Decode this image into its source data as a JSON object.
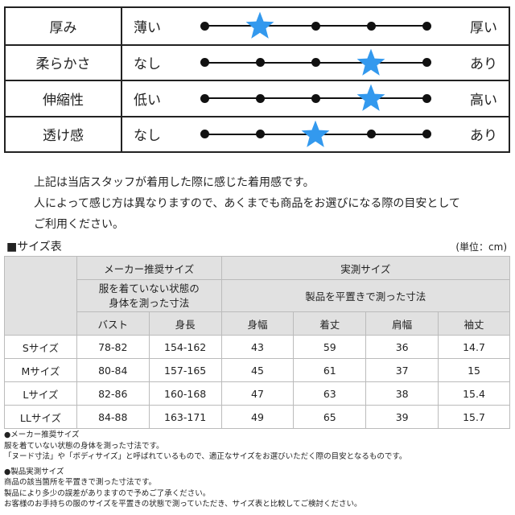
{
  "feel": [
    {
      "label": "厚み",
      "left": "薄い",
      "right": "厚い",
      "value": 2,
      "steps": 5
    },
    {
      "label": "柔らかさ",
      "left": "なし",
      "right": "あり",
      "value": 4,
      "steps": 5
    },
    {
      "label": "伸縮性",
      "left": "低い",
      "right": "高い",
      "value": 4,
      "steps": 5
    },
    {
      "label": "透け感",
      "left": "なし",
      "right": "あり",
      "value": 3,
      "steps": 5
    }
  ],
  "colors": {
    "star": "#3399ee"
  },
  "note": [
    "上記は当店スタッフが着用した際に感じた着用感です。",
    "人によって感じ方は異なりますので、あくまでも商品をお選びになる際の目安として",
    "ご利用ください。"
  ],
  "size_title": "■サイズ表",
  "unit": "(単位：cm)",
  "table": {
    "maker": "メーカー推奨サイズ",
    "maker_desc1": "服を着ていない状態の",
    "maker_desc2": "身体を測った寸法",
    "actual": "実測サイズ",
    "actual_desc": "製品を平置きで測った寸法",
    "cols": [
      "バスト",
      "身長",
      "身幅",
      "着丈",
      "肩幅",
      "袖丈"
    ],
    "rows": [
      [
        "Sサイズ",
        "78-82",
        "154-162",
        "43",
        "59",
        "36",
        "14.7"
      ],
      [
        "Mサイズ",
        "80-84",
        "157-165",
        "45",
        "61",
        "37",
        "15"
      ],
      [
        "Lサイズ",
        "82-86",
        "160-168",
        "47",
        "63",
        "38",
        "15.4"
      ],
      [
        "LLサイズ",
        "84-88",
        "163-171",
        "49",
        "65",
        "39",
        "15.7"
      ]
    ]
  },
  "foot": {
    "h1": "●メーカー推奨サイズ",
    "l1": "服を着ていない状態の身体を測った寸法です。",
    "l2": "「ヌード寸法」や「ボディサイズ」と呼ばれているもので、適正なサイズをお選びいただく際の目安となるものです。",
    "h2": "●製品実測サイズ",
    "l3": "商品の該当箇所を平置きで測った寸法です。",
    "l4": "製品により多少の誤差がありますので予めご了承ください。",
    "l5": "お客様のお手持ちの服のサイズを平置きの状態で測っていただき、サイズ表と比較してご検討ください。"
  }
}
